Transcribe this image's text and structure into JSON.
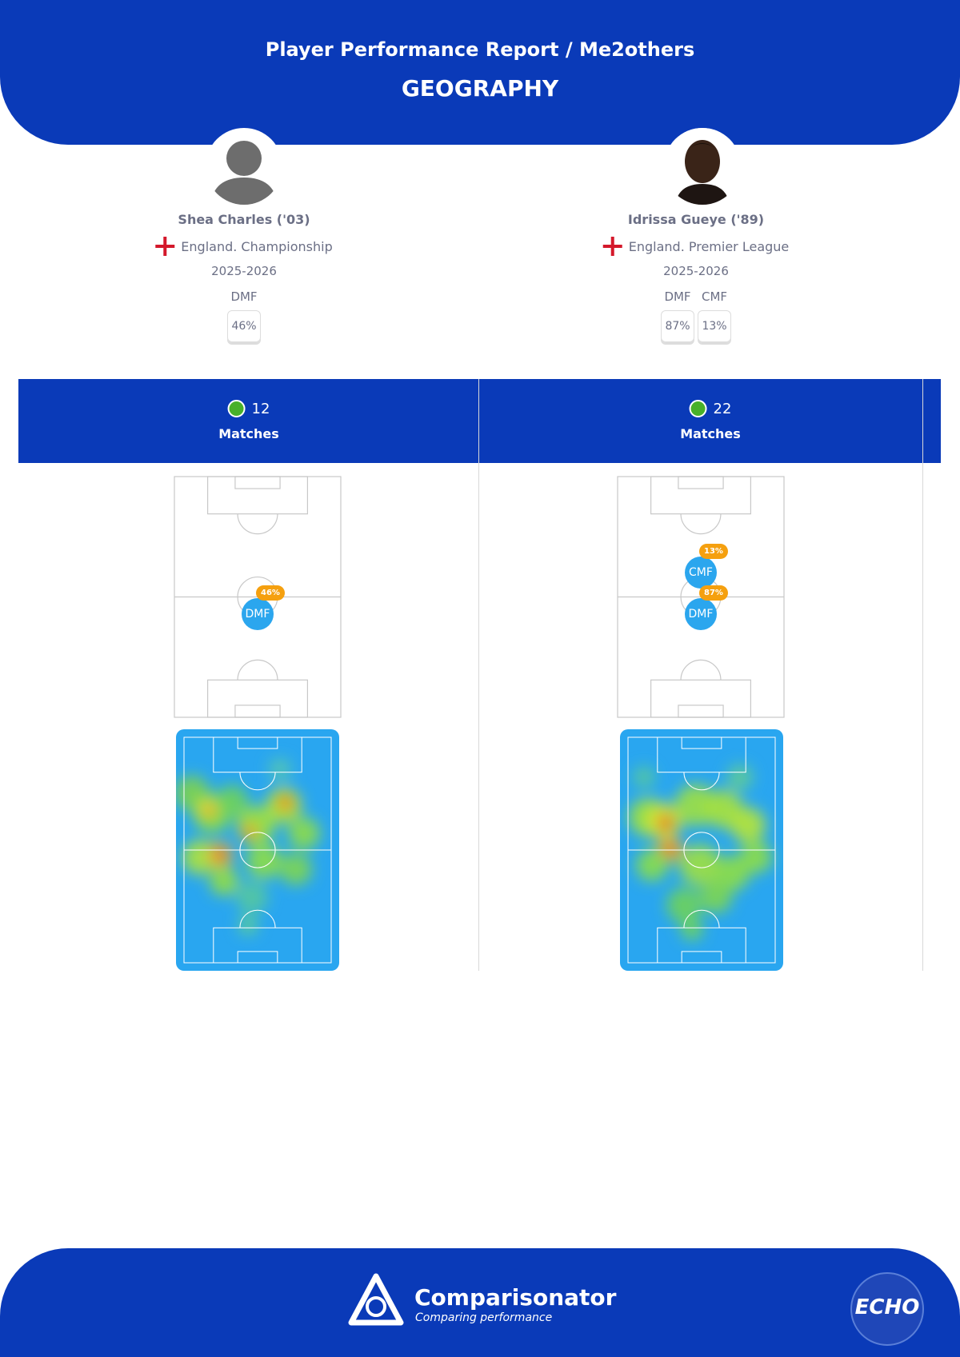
{
  "header": {
    "title": "Player Performance Report / Me2others",
    "subtitle": "GEOGRAPHY"
  },
  "players": [
    {
      "name": "Shea Charles ('03)",
      "league": "England. Championship",
      "season": "2025-2026",
      "positions": [
        {
          "label": "DMF",
          "share": "46%"
        }
      ],
      "matches": 12,
      "matches_label": "Matches"
    },
    {
      "name": "Idrissa Gueye ('89)",
      "league": "England. Premier League",
      "season": "2025-2026",
      "positions": [
        {
          "label": "DMF",
          "share": "87%"
        },
        {
          "label": "CMF",
          "share": "13%"
        }
      ],
      "matches": 22,
      "matches_label": "Matches"
    }
  ],
  "footer": {
    "brand": "Comparisonator",
    "tagline": "Comparing performance",
    "club_logo": "ECHO"
  }
}
